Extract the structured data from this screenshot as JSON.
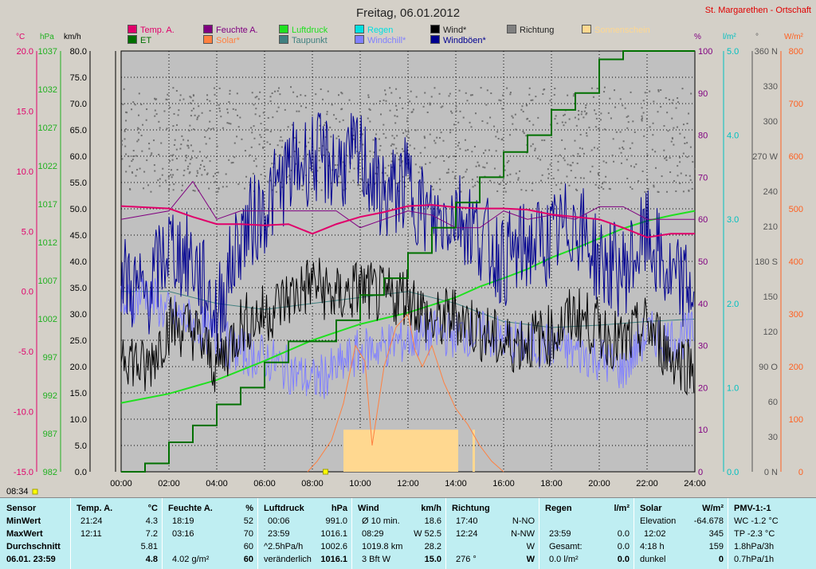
{
  "title": "Freitag, 06.01.2012",
  "location": "St. Margarethen - Ortschaft",
  "legend": [
    {
      "label": "Temp. A.",
      "color": "#e0006a"
    },
    {
      "label": "Feuchte A.",
      "color": "#800080"
    },
    {
      "label": "Luftdruck",
      "color": "#20e020"
    },
    {
      "label": "Regen",
      "color": "#00e0e0"
    },
    {
      "label": "Wind*",
      "color": "#000000"
    },
    {
      "label": "Richtung",
      "color": "#808080"
    },
    {
      "label": "Sonnenschein",
      "color": "#ffd890"
    },
    {
      "label": "ET",
      "color": "#007000"
    },
    {
      "label": "Solar*",
      "color": "#ff8040"
    },
    {
      "label": "Taupunkt",
      "color": "#408080"
    },
    {
      "label": "Windchill*",
      "color": "#8080ff"
    },
    {
      "label": "Windböen*",
      "color": "#000090"
    }
  ],
  "units": {
    "temp": "°C",
    "pressure": "hPa",
    "wind": "km/h",
    "humidity": "%",
    "rain": "l/m²",
    "dir": "°",
    "solar": "W/m²"
  },
  "marker_time": "08:34",
  "chart_data": {
    "type": "line",
    "x_ticks": [
      "00:00",
      "02:00",
      "04:00",
      "06:00",
      "08:00",
      "10:00",
      "12:00",
      "14:00",
      "16:00",
      "18:00",
      "20:00",
      "22:00",
      "24:00"
    ],
    "xlim_hours": [
      0,
      24
    ],
    "axes": {
      "temp": {
        "ticks": [
          "20.0",
          "15.0",
          "10.0",
          "5.0",
          "0.0",
          "-5.0",
          "-10.0",
          "-15.0"
        ]
      },
      "pressure": {
        "ticks": [
          "1037",
          "1032",
          "1027",
          "1022",
          "1017",
          "1012",
          "1007",
          "1002",
          "997",
          "992",
          "987",
          "982"
        ]
      },
      "wind": {
        "ticks": [
          "80.0",
          "75.0",
          "70.0",
          "65.0",
          "60.0",
          "55.0",
          "50.0",
          "45.0",
          "40.0",
          "35.0",
          "30.0",
          "25.0",
          "20.0",
          "15.0",
          "10.0",
          "5.0",
          "0.0"
        ]
      },
      "humidity": {
        "ticks": [
          "100",
          "90",
          "80",
          "70",
          "60",
          "50",
          "40",
          "30",
          "20",
          "10",
          "0"
        ]
      },
      "rain": {
        "ticks": [
          "5.0",
          "4.0",
          "3.0",
          "2.0",
          "1.0",
          "0.0"
        ]
      },
      "direction": {
        "ticks": [
          "360 N",
          "330",
          "300",
          "270 W",
          "240",
          "210",
          "180 S",
          "150",
          "120",
          "90 O",
          "60",
          "30",
          "0 N"
        ]
      },
      "solar": {
        "ticks": [
          "800",
          "700",
          "600",
          "500",
          "400",
          "300",
          "200",
          "100",
          "0"
        ]
      }
    },
    "series": [
      {
        "name": "Temp. A.",
        "axis": "temp",
        "hours": [
          0,
          2,
          3,
          4,
          5,
          6,
          7,
          8,
          9,
          10,
          11,
          12,
          13,
          14,
          15,
          16,
          17,
          18,
          19,
          20,
          21,
          22,
          23,
          24
        ],
        "values": [
          7.1,
          6.9,
          6.2,
          5.6,
          5.6,
          5.5,
          5.6,
          4.8,
          5.6,
          6.2,
          6.6,
          7.1,
          7.2,
          7.0,
          6.9,
          6.9,
          6.8,
          6.4,
          6.2,
          6.0,
          5.3,
          4.5,
          4.8,
          4.8
        ]
      },
      {
        "name": "Feuchte A.",
        "axis": "humidity",
        "hours": [
          0,
          2,
          3,
          4,
          5,
          6,
          7,
          8,
          9,
          10,
          11,
          12,
          13,
          14,
          15,
          16,
          17,
          18,
          19,
          20,
          21,
          22,
          23,
          24
        ],
        "values": [
          60,
          62,
          69,
          60,
          62,
          62,
          62,
          62,
          62,
          58,
          60,
          62,
          61,
          58,
          58,
          62,
          60,
          61,
          60,
          63,
          63,
          60,
          60,
          60
        ]
      },
      {
        "name": "Luftdruck",
        "axis": "pressure",
        "hours": [
          0,
          2,
          4,
          6,
          8,
          10,
          12,
          13,
          14,
          15,
          16,
          17,
          18,
          19,
          20,
          21,
          22,
          23,
          24
        ],
        "values": [
          991,
          992.2,
          994,
          996.5,
          999.2,
          1001.3,
          1002.8,
          1003.8,
          1004.8,
          1006.2,
          1007.3,
          1008.5,
          1010,
          1011.2,
          1012.5,
          1013.8,
          1014.8,
          1015.5,
          1016.1
        ]
      },
      {
        "name": "Wind*",
        "axis": "wind",
        "hours": [
          0,
          1,
          2,
          3,
          4,
          5,
          6,
          7,
          8,
          9,
          10,
          11,
          12,
          13,
          14,
          15,
          16,
          17,
          18,
          19,
          20,
          21,
          22,
          23,
          24
        ],
        "values": [
          24,
          19,
          28,
          27,
          20,
          28,
          30,
          33,
          36,
          33,
          35,
          33,
          34,
          28,
          30,
          27,
          24,
          25,
          26,
          30,
          27,
          24,
          28,
          22,
          20
        ]
      },
      {
        "name": "Windböen*",
        "axis": "wind",
        "hours": [
          0,
          1,
          2,
          3,
          4,
          5,
          6,
          7,
          8,
          9,
          10,
          11,
          12,
          13,
          14,
          15,
          16,
          17,
          18,
          19,
          20,
          21,
          22,
          23,
          24
        ],
        "values": [
          37,
          33,
          43,
          40,
          30,
          45,
          50,
          57,
          60,
          58,
          60,
          52,
          55,
          47,
          50,
          45,
          40,
          43,
          44,
          48,
          40,
          38,
          45,
          36,
          35
        ]
      },
      {
        "name": "Windchill*",
        "axis": "temp",
        "hours": [
          0,
          1,
          2,
          3,
          4,
          5,
          6,
          7,
          8,
          9,
          10,
          11,
          12,
          13,
          14,
          15,
          16,
          17,
          18,
          19,
          20,
          21,
          22,
          23,
          24
        ],
        "values": [
          -1.5,
          0,
          -2,
          -2.5,
          -4,
          -5,
          -5.5,
          -6.5,
          -7.5,
          -6.5,
          -5,
          -4.5,
          -4,
          -3.5,
          -3.5,
          -3.5,
          -4,
          -4.5,
          -4.5,
          -5,
          -5.5,
          -6.5,
          -3.5,
          -4,
          -3.5
        ]
      },
      {
        "name": "Taupunkt",
        "axis": "temp",
        "hours": [
          0,
          2,
          4,
          6,
          8,
          10,
          12,
          14,
          16,
          18,
          20,
          22,
          24
        ],
        "values": [
          0,
          0,
          -1,
          -1.5,
          -1,
          -0.5,
          0,
          -1,
          -2.5,
          -3.0,
          -2.8,
          -2.5,
          -2.3
        ]
      },
      {
        "name": "ET",
        "axis": "rain",
        "hours": [
          0,
          1,
          2,
          3,
          4,
          5,
          6,
          7,
          8,
          9,
          10,
          11,
          12,
          13,
          14,
          15,
          16,
          17,
          18,
          19,
          20,
          21,
          22,
          23,
          24
        ],
        "values": [
          0,
          0.1,
          0.35,
          0.55,
          0.8,
          1.0,
          1.3,
          1.55,
          1.55,
          1.8,
          2.1,
          2.3,
          2.6,
          2.9,
          3.2,
          3.5,
          3.8,
          4.0,
          4.3,
          4.5,
          4.9,
          5.3,
          5.6,
          5.9,
          6.0
        ]
      },
      {
        "name": "Solar*",
        "axis": "solar",
        "hours": [
          7.8,
          8.2,
          8.8,
          9.3,
          9.8,
          10.2,
          10.5,
          11,
          11.5,
          12,
          12.3,
          12.6,
          13,
          13.5,
          14,
          14.5,
          15,
          15.5,
          16
        ],
        "values": [
          0,
          20,
          60,
          130,
          240,
          210,
          50,
          200,
          275,
          300,
          230,
          200,
          240,
          170,
          120,
          90,
          50,
          20,
          0
        ]
      }
    ],
    "sunshine_bars": [
      {
        "from": 9.3,
        "to": 14.1
      },
      {
        "from": 14.7,
        "to": 14.8
      }
    ],
    "direction_points_deg_range": [
      240,
      330
    ]
  },
  "stats": {
    "sensor": {
      "header": "Sensor",
      "rows": [
        "MinWert",
        "MaxWert",
        "Durchschnitt",
        "06.01. 23:59"
      ]
    },
    "temp": {
      "header": "Temp. A.",
      "unit": "°C",
      "rows": [
        [
          "21:24",
          "4.3"
        ],
        [
          "12:11",
          "7.2"
        ],
        [
          "",
          "5.81"
        ],
        [
          "",
          "4.8"
        ]
      ]
    },
    "humidity": {
      "header": "Feuchte A.",
      "unit": "%",
      "rows": [
        [
          "18:19",
          "52"
        ],
        [
          "03:16",
          "70"
        ],
        [
          "",
          "60"
        ],
        [
          "4.02 g/m²",
          "60"
        ]
      ]
    },
    "pressure": {
      "header": "Luftdruck",
      "unit": "hPa",
      "rows": [
        [
          "00:06",
          "991.0"
        ],
        [
          "23:59",
          "1016.1"
        ],
        [
          "^2.5hPa/h",
          "1002.6"
        ],
        [
          "veränderlich",
          "1016.1"
        ]
      ]
    },
    "wind": {
      "header": "Wind",
      "unit": "km/h",
      "rows": [
        [
          "Ø 10 min.",
          "18.6"
        ],
        [
          "08:29",
          "W 52.5"
        ],
        [
          "1019.8 km",
          "28.2"
        ],
        [
          "3 Bft W",
          "15.0"
        ]
      ]
    },
    "direction": {
      "header": "Richtung",
      "rows": [
        [
          "17:40",
          "N-NO"
        ],
        [
          "12:24",
          "N-NW"
        ],
        [
          "",
          "W"
        ],
        [
          "276 °",
          "W"
        ]
      ]
    },
    "rain": {
      "header": "Regen",
      "unit": "l/m²",
      "rows": [
        [
          "",
          ""
        ],
        [
          "23:59",
          "0.0"
        ],
        [
          "Gesamt:",
          "0.0"
        ],
        [
          "0.0 l/m²",
          "0.0"
        ]
      ]
    },
    "solar": {
      "header": "Solar",
      "unit": "W/m²",
      "rows": [
        [
          "Elevation",
          "-64.678"
        ],
        [
          "12:02",
          "345"
        ],
        [
          "4:18 h",
          "159"
        ],
        [
          "dunkel",
          "0"
        ]
      ]
    },
    "pmv": {
      "header": "PMV-1:-1",
      "rows": [
        "WC -1.2 °C",
        "TP -2.3 °C",
        "1.8hPa/3h",
        "0.7hPa/1h"
      ]
    }
  }
}
